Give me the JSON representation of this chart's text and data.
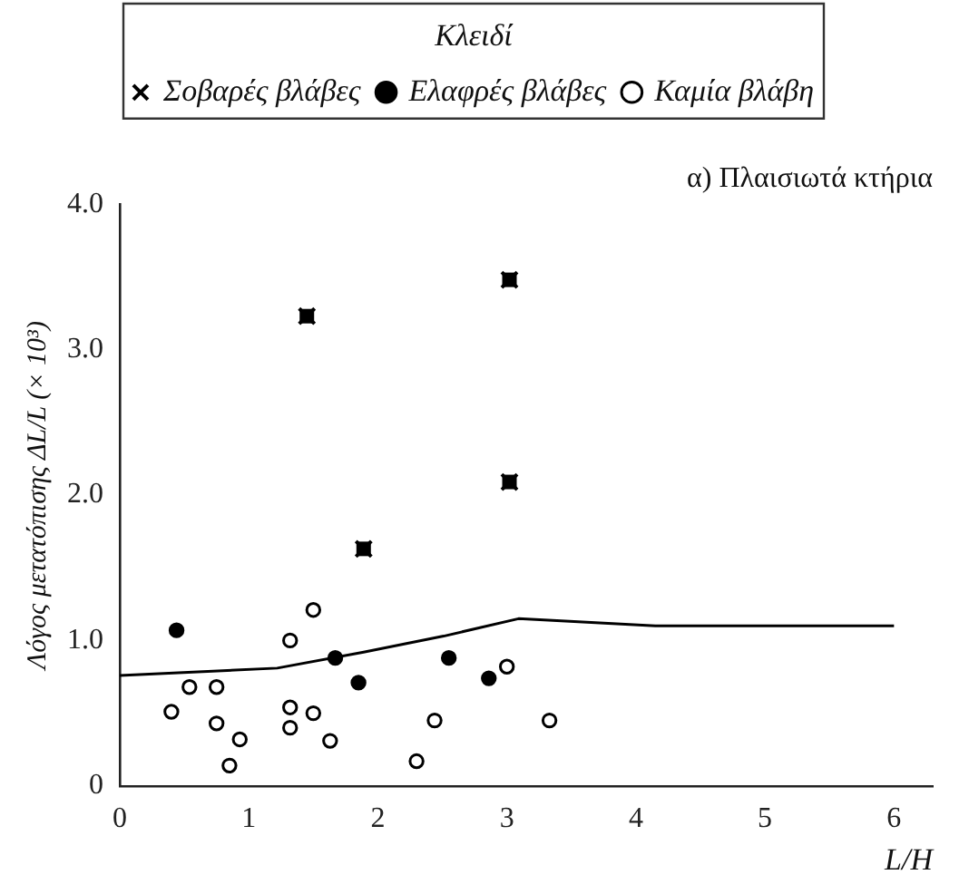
{
  "chart_data": {
    "type": "scatter",
    "title": "α) Πλαισιωτά κτήρια",
    "xlabel": "L/H",
    "ylabel": "Λόγος μετατόπισης ΔL/L (× 10³)",
    "legend_title": "Κλειδί",
    "legend": "top",
    "grid": false,
    "xlim": [
      0,
      6.3
    ],
    "xticks": [
      0,
      1,
      2,
      3,
      4,
      5,
      6
    ],
    "ylim": [
      0,
      4
    ],
    "yticks": [
      0,
      {
        "value": 1,
        "label": "1.0"
      },
      {
        "value": 2,
        "label": "2.0"
      },
      {
        "value": 3,
        "label": "3.0"
      },
      {
        "value": 4,
        "label": "4.0"
      }
    ],
    "series": [
      {
        "name": "Σοβαρές βλάβες",
        "color": "#000000",
        "marker": "cross",
        "x": [
          1.45,
          3.02,
          3.02,
          1.89
        ],
        "values": [
          3.23,
          3.48,
          2.09,
          1.63
        ]
      },
      {
        "name": "Ελαφρές βλάβες",
        "color": "#000000",
        "marker": "circle",
        "x": [
          0.44,
          1.67,
          1.85,
          2.55,
          2.86
        ],
        "values": [
          1.07,
          0.88,
          0.71,
          0.88,
          0.74
        ]
      },
      {
        "name": "Καμία βλάβη",
        "color": "#000000",
        "marker": "circle-open",
        "x": [
          0.4,
          0.54,
          0.75,
          0.75,
          0.93,
          0.85,
          1.32,
          1.5,
          1.32,
          1.32,
          1.5,
          1.63,
          2.3,
          2.44,
          3.0,
          3.33
        ],
        "values": [
          0.51,
          0.68,
          0.68,
          0.43,
          0.32,
          0.14,
          1.0,
          1.21,
          0.54,
          0.4,
          0.5,
          0.31,
          0.17,
          0.45,
          0.82,
          0.45
        ]
      },
      {
        "type": "line",
        "color": "#000000",
        "marker": "none",
        "x": [
          0,
          1.22,
          1.89,
          2.51,
          3.09,
          4.15,
          6
        ],
        "values": [
          0.76,
          0.81,
          0.92,
          1.03,
          1.15,
          1.1,
          1.1
        ]
      }
    ]
  }
}
